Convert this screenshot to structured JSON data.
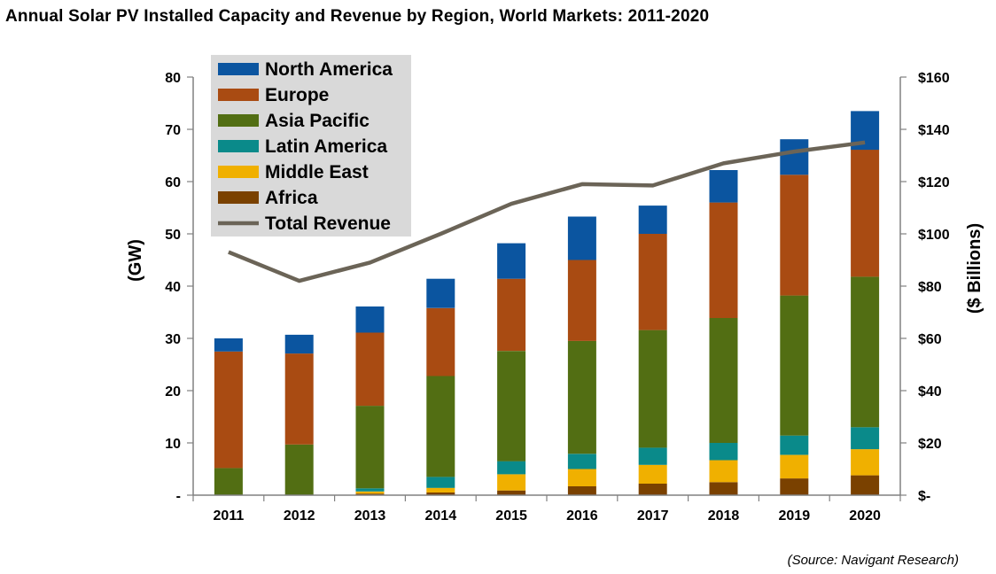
{
  "title": "Annual Solar PV Installed Capacity and Revenue by Region, World Markets: 2011-2020",
  "source": "(Source: Navigant Research)",
  "chart_data": {
    "type": "bar",
    "stacked": true,
    "categories": [
      "2011",
      "2012",
      "2013",
      "2014",
      "2015",
      "2016",
      "2017",
      "2018",
      "2019",
      "2020"
    ],
    "series": [
      {
        "name": "Africa",
        "color": "#7a4100",
        "values": [
          0,
          0,
          0.3,
          0.5,
          0.9,
          1.7,
          2.2,
          2.5,
          3.2,
          3.8
        ]
      },
      {
        "name": "Middle East",
        "color": "#f0b000",
        "values": [
          0,
          0,
          0.4,
          0.9,
          3.1,
          3.3,
          3.6,
          4.2,
          4.5,
          5.0
        ]
      },
      {
        "name": "Latin America",
        "color": "#0a8a8a",
        "values": [
          0,
          0,
          0.6,
          2.1,
          2.5,
          2.9,
          3.3,
          3.3,
          3.7,
          4.2
        ]
      },
      {
        "name": "Asia Pacific",
        "color": "#526e13",
        "values": [
          5.2,
          9.7,
          15.8,
          19.3,
          21.1,
          21.6,
          22.5,
          23.9,
          26.8,
          28.8
        ]
      },
      {
        "name": "Europe",
        "color": "#a94b12",
        "values": [
          22.3,
          17.4,
          14.0,
          13.0,
          13.8,
          15.5,
          18.4,
          22.1,
          23.1,
          24.3
        ]
      },
      {
        "name": "North America",
        "color": "#0b55a0",
        "values": [
          2.5,
          3.6,
          5.0,
          5.6,
          6.8,
          8.3,
          5.4,
          6.2,
          6.8,
          7.4
        ]
      }
    ],
    "legend_order": [
      "North America",
      "Europe",
      "Asia Pacific",
      "Latin America",
      "Middle East",
      "Africa",
      "Total Revenue"
    ],
    "line_series": {
      "name": "Total Revenue",
      "color": "#6b6457",
      "axis": "right",
      "values": [
        93,
        82,
        89,
        100,
        111.5,
        119,
        118.5,
        127,
        131.5,
        135
      ]
    },
    "ylabel": "(GW)",
    "y2label": "($ Billions)",
    "ylim": [
      0,
      80
    ],
    "y2lim": [
      0,
      160
    ],
    "yticks": [
      "-",
      "10",
      "20",
      "30",
      "40",
      "50",
      "60",
      "70",
      "80"
    ],
    "y2ticks": [
      "$-",
      "$20",
      "$40",
      "$60",
      "$80",
      "$100",
      "$120",
      "$140",
      "$160"
    ],
    "grid": false,
    "legend_position": "top-left"
  }
}
